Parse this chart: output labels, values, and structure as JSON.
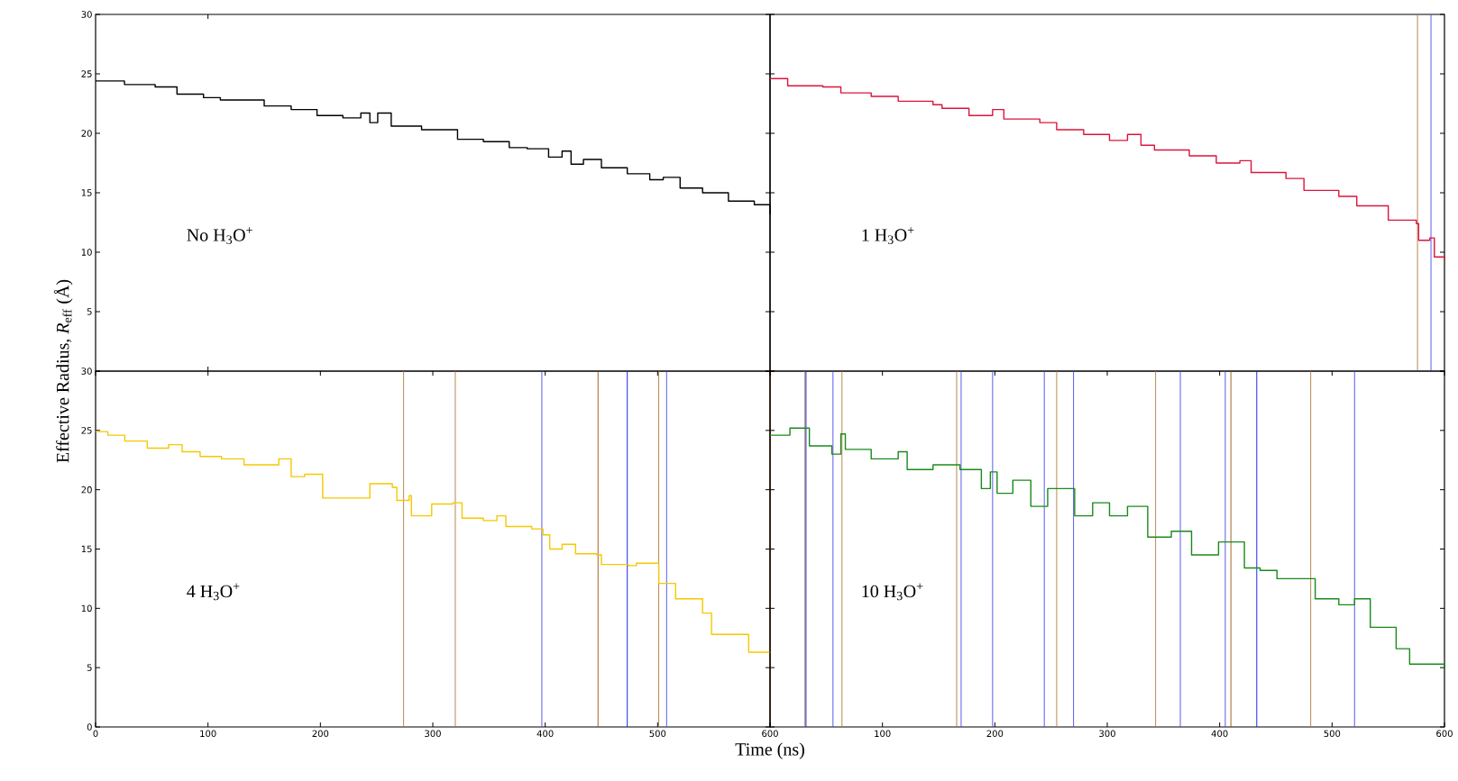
{
  "chart_data": [
    {
      "type": "step",
      "color": "#000000",
      "ylabel": "Effective Radius, *R*$_{eff}$ (Å)",
      "annotations": [
        "No H$_{3}$O$^{+}$"
      ],
      "xlim": [
        0,
        600
      ],
      "ylim": [
        0,
        30
      ],
      "yticks": [
        {
          "value": 0,
          "label": null
        },
        5,
        10,
        15,
        20,
        25,
        30
      ],
      "xticks": [
        {
          "value": 100,
          "label": null
        }
      ],
      "tick_labels": "y",
      "x": [
        0,
        25.7,
        53,
        72.4,
        96,
        111,
        135,
        150,
        174,
        197,
        220,
        236,
        244,
        251,
        263,
        290,
        314,
        322,
        345,
        368,
        384,
        403,
        415,
        423,
        434,
        450,
        473,
        493,
        505,
        520,
        540,
        559,
        563,
        586,
        600
      ],
      "values": [
        24.4,
        24.1,
        23.9,
        23.3,
        23.0,
        22.8,
        22.8,
        22.3,
        22.0,
        21.5,
        21.3,
        21.7,
        20.9,
        21.7,
        20.6,
        20.3,
        20.3,
        19.5,
        19.3,
        18.8,
        18.7,
        18.0,
        18.5,
        17.4,
        17.8,
        17.1,
        16.6,
        16.1,
        16.3,
        15.4,
        15.0,
        15.0,
        14.3,
        14.0,
        13.2
      ]
    },
    {
      "type": "step",
      "color": "#dc143c",
      "annotations": [
        "1 H$_{3}$O$^{+}$"
      ],
      "xlim": [
        0,
        600
      ],
      "ylim": [
        0,
        30
      ],
      "yticks": [
        0,
        5,
        10,
        15,
        20,
        25,
        30
      ],
      "tick_labels": false,
      "x": [
        0,
        15.7,
        47,
        63,
        90,
        114,
        145,
        153,
        177,
        198,
        208,
        240,
        255,
        279,
        302,
        318,
        330,
        342,
        373,
        397,
        418,
        428,
        451,
        459,
        475,
        506,
        522,
        550,
        575,
        577,
        587,
        591,
        600
      ],
      "values": [
        24.6,
        24.0,
        23.9,
        23.4,
        23.1,
        22.7,
        22.4,
        22.1,
        21.5,
        22.0,
        21.2,
        20.9,
        20.3,
        19.9,
        19.4,
        19.9,
        19.0,
        18.6,
        18.1,
        17.5,
        17.7,
        16.7,
        16.7,
        16.2,
        15.2,
        14.7,
        13.9,
        12.7,
        12.4,
        11.0,
        11.2,
        9.6,
        9.4
      ],
      "ref_lines": [
        {
          "axis": "x",
          "value": 576,
          "color": "#b07c3c"
        },
        {
          "axis": "x",
          "value": 588,
          "color": "#4848ee"
        }
      ]
    },
    {
      "type": "step",
      "color": "#f5c800",
      "xlabel": "Time (ns)",
      "annotations": [
        "4 H$_{3}$O$^{+}$"
      ],
      "xlim": [
        0,
        600
      ],
      "ylim": [
        0,
        30
      ],
      "xticks": [
        0,
        100,
        200,
        300,
        400,
        500,
        600
      ],
      "yticks": [
        0,
        5,
        10,
        15,
        20,
        25,
        30
      ],
      "x": [
        0,
        10.9,
        26,
        46,
        65,
        77,
        93,
        112,
        132,
        151,
        163,
        174,
        186,
        202,
        240,
        244,
        264,
        268,
        279,
        281,
        295,
        299,
        318,
        326,
        345,
        357,
        365,
        388,
        398,
        404,
        415,
        427,
        446,
        450,
        474,
        481,
        501,
        516,
        540,
        548,
        571,
        581,
        600
      ],
      "values": [
        24.9,
        24.6,
        24.1,
        23.5,
        23.8,
        23.2,
        22.8,
        22.6,
        22.1,
        22.1,
        22.6,
        21.1,
        21.3,
        19.3,
        19.3,
        20.5,
        20.2,
        19.1,
        19.5,
        17.8,
        17.8,
        18.8,
        18.9,
        17.6,
        17.4,
        17.8,
        16.9,
        16.7,
        16.2,
        15.0,
        15.4,
        14.6,
        14.5,
        13.7,
        13.6,
        13.8,
        12.1,
        10.8,
        9.6,
        7.8,
        7.8,
        6.3,
        6.2
      ],
      "ref_lines": [
        {
          "axis": "x",
          "value": 274,
          "color": "#b07c3c"
        },
        {
          "axis": "x",
          "value": 320,
          "color": "#b07c3c"
        },
        {
          "axis": "x",
          "value": 397,
          "color": "#4848ee"
        },
        {
          "axis": "x",
          "value": 447,
          "color": "#9a5012"
        },
        {
          "axis": "x",
          "value": 473,
          "color": "#0010f0"
        },
        {
          "axis": "x",
          "value": 501,
          "color": "#b07c3c"
        },
        {
          "axis": "x",
          "value": 508,
          "color": "#4848ee"
        },
        {
          "axis": "x",
          "value": 600,
          "color": "#9a5012"
        }
      ]
    },
    {
      "type": "step",
      "color": "#1a8a1a",
      "annotations": [
        "10 H$_{3}$O$^{+}$"
      ],
      "xlim": [
        0,
        600
      ],
      "ylim": [
        0,
        30
      ],
      "xticks": [
        {
          "value": 0,
          "label": null
        },
        100,
        200,
        300,
        400,
        500,
        600
      ],
      "yticks": [
        0,
        5,
        10,
        15,
        20,
        25,
        30
      ],
      "tick_labels": "x",
      "x": [
        0,
        17.7,
        27,
        35,
        55,
        63,
        67,
        90,
        114,
        122,
        145,
        169,
        188,
        196,
        202,
        216,
        232,
        247,
        271,
        287,
        302,
        318,
        336,
        357,
        375,
        399,
        422,
        436,
        451,
        483,
        485,
        506,
        520,
        534,
        557,
        569,
        593,
        600
      ],
      "values": [
        24.6,
        25.2,
        25.2,
        23.7,
        23.0,
        24.7,
        23.4,
        22.6,
        23.2,
        21.7,
        22.1,
        21.7,
        20.1,
        21.5,
        19.7,
        20.8,
        18.6,
        20.1,
        17.8,
        18.9,
        17.8,
        18.6,
        16.0,
        16.5,
        14.5,
        15.6,
        13.4,
        13.2,
        12.5,
        12.5,
        10.8,
        10.3,
        10.8,
        8.4,
        6.6,
        5.3,
        5.3,
        4.9
      ],
      "ref_lines": [
        {
          "axis": "x",
          "value": 31,
          "color": "#b07c3c"
        },
        {
          "axis": "x",
          "value": 32,
          "color": "#0010f0"
        },
        {
          "axis": "x",
          "value": 56,
          "color": "#4848ee"
        },
        {
          "axis": "x",
          "value": 64,
          "color": "#b07c3c"
        },
        {
          "axis": "x",
          "value": 166,
          "color": "#b07c3c"
        },
        {
          "axis": "x",
          "value": 170,
          "color": "#4848ee"
        },
        {
          "axis": "x",
          "value": 198,
          "color": "#4848ee"
        },
        {
          "axis": "x",
          "value": 244,
          "color": "#4848ee"
        },
        {
          "axis": "x",
          "value": 255,
          "color": "#b07c3c"
        },
        {
          "axis": "x",
          "value": 270,
          "color": "#4848ee"
        },
        {
          "axis": "x",
          "value": 343,
          "color": "#b07c3c"
        },
        {
          "axis": "x",
          "value": 365,
          "color": "#4848ee"
        },
        {
          "axis": "x",
          "value": 405,
          "color": "#4848ee"
        },
        {
          "axis": "x",
          "value": 410,
          "color": "#9a5012"
        },
        {
          "axis": "x",
          "value": 433,
          "color": "#0010f0"
        },
        {
          "axis": "x",
          "value": 481,
          "color": "#b07c3c"
        },
        {
          "axis": "x",
          "value": 520,
          "color": "#4848ee"
        }
      ]
    }
  ]
}
